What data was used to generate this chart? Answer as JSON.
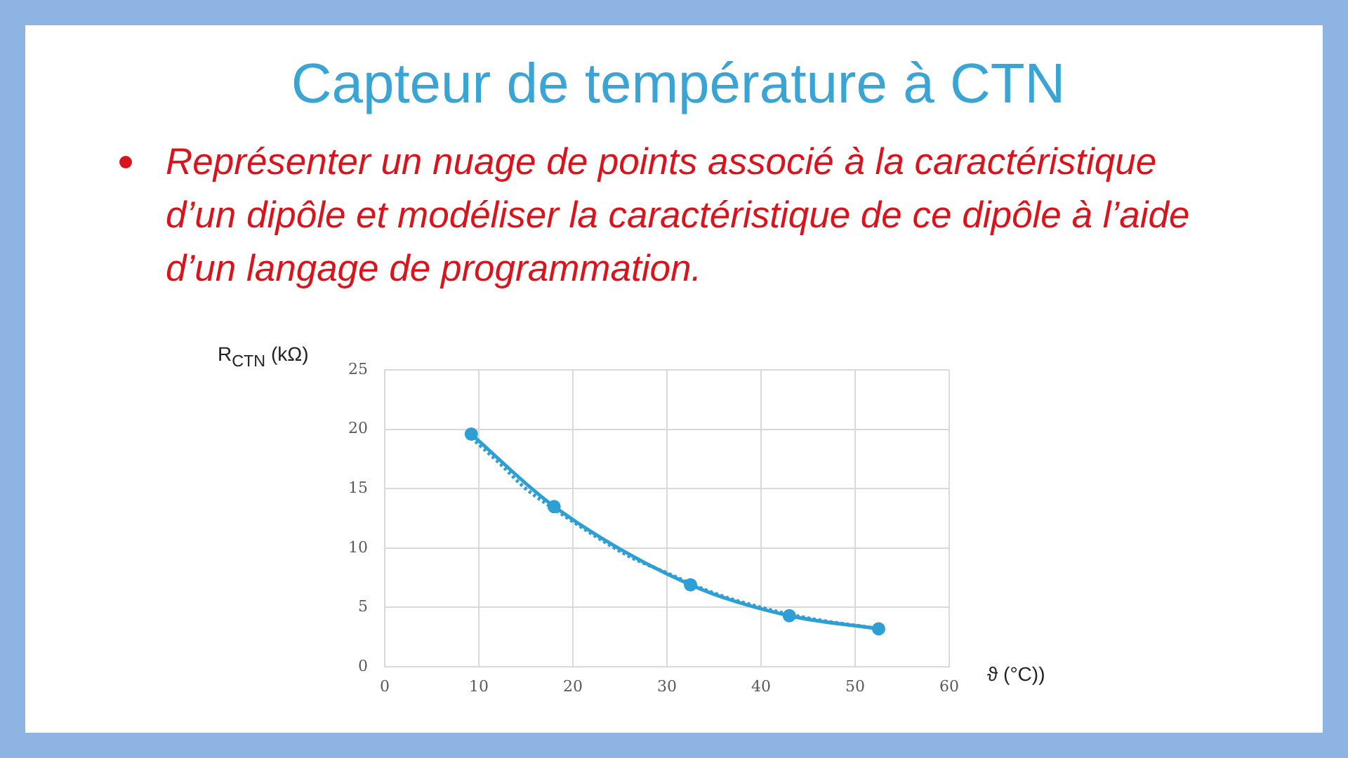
{
  "chart_data": {
    "type": "line",
    "title": "Capteur de température à CTN",
    "subtitle": "Représenter un nuage de points associé à la caractéristique d’un dipôle et modéliser la caractéristique de ce dipôle à l’aide d’un langage de programmation.",
    "xlabel": "ϑ (°C))",
    "ylabel": "R$_{CTN}$ (kΩ)",
    "xlim": [
      0,
      60
    ],
    "xticks": [
      0,
      10,
      20,
      30,
      40,
      50,
      60
    ],
    "ylim": [
      0,
      25
    ],
    "yticks": [
      0,
      5,
      10,
      15,
      20,
      25
    ],
    "grid": true,
    "marker": "circle",
    "line_style": "solid",
    "series": [
      {
        "color": "#2e9fd4",
        "x": [
          9.2,
          18,
          32.5,
          43,
          52.5
        ],
        "values": [
          19.6,
          13.5,
          6.9,
          4.3,
          3.2
        ]
      },
      {
        "color": "#2e9fd4",
        "marker": "none",
        "line_style": "dotted",
        "x": [
          9.2,
          12,
          15,
          18,
          22,
          26,
          30,
          35,
          40,
          45,
          52.5
        ],
        "values": [
          19.3,
          17.3,
          15,
          13.3,
          11.2,
          9.3,
          7.9,
          6.2,
          5,
          4.1,
          3.2
        ]
      }
    ]
  }
}
